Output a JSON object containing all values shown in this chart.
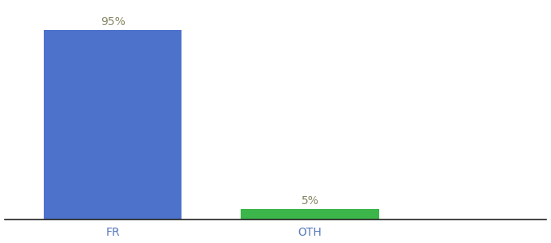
{
  "categories": [
    "FR",
    "OTH"
  ],
  "values": [
    95,
    5
  ],
  "bar_colors": [
    "#4d72cc",
    "#3cb54a"
  ],
  "label_texts": [
    "95%",
    "5%"
  ],
  "ylim": [
    0,
    108
  ],
  "background_color": "#ffffff",
  "label_fontsize": 10,
  "tick_fontsize": 10,
  "bar_width": 0.7,
  "x_positions": [
    0,
    1
  ],
  "xlim": [
    -0.55,
    2.2
  ],
  "label_color": "#888866",
  "tick_color": "#5577bb",
  "spine_color": "#222222"
}
